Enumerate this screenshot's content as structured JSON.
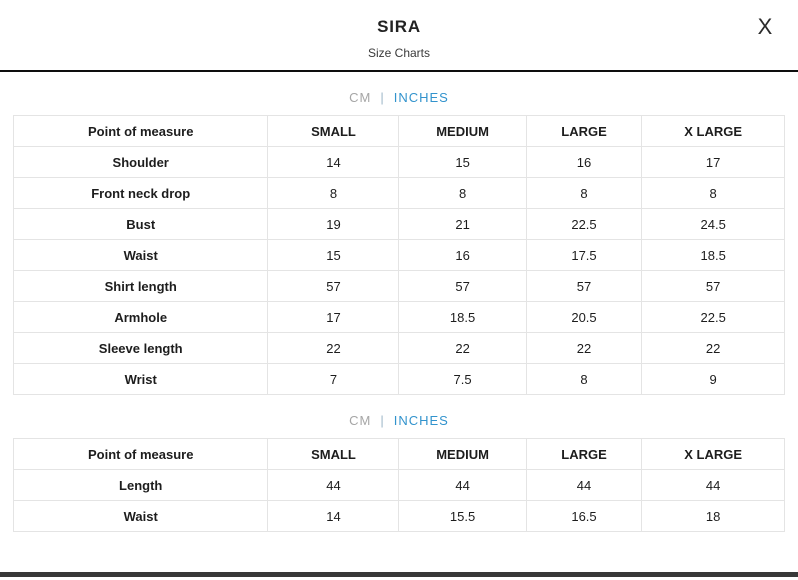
{
  "modal": {
    "title": "SIRA",
    "subtitle": "Size Charts",
    "close_label": "X"
  },
  "colors": {
    "accent_blue": "#3293cd",
    "muted_gray": "#a6a6a6",
    "table_border": "#e4e4e4",
    "divider_black": "#0e0e0e",
    "bottom_bar": "#383838"
  },
  "unit_toggle": {
    "cm_label": "CM",
    "separator": "|",
    "inches_label": "INCHES",
    "selected": "INCHES"
  },
  "tables": [
    {
      "columns": [
        "Point of measure",
        "SMALL",
        "MEDIUM",
        "LARGE",
        "X LARGE"
      ],
      "rows": [
        {
          "label": "Shoulder",
          "values": [
            "14",
            "15",
            "16",
            "17"
          ]
        },
        {
          "label": "Front neck drop",
          "values": [
            "8",
            "8",
            "8",
            "8"
          ]
        },
        {
          "label": "Bust",
          "values": [
            "19",
            "21",
            "22.5",
            "24.5"
          ]
        },
        {
          "label": "Waist",
          "values": [
            "15",
            "16",
            "17.5",
            "18.5"
          ]
        },
        {
          "label": "Shirt length",
          "values": [
            "57",
            "57",
            "57",
            "57"
          ]
        },
        {
          "label": "Armhole",
          "values": [
            "17",
            "18.5",
            "20.5",
            "22.5"
          ]
        },
        {
          "label": "Sleeve length",
          "values": [
            "22",
            "22",
            "22",
            "22"
          ]
        },
        {
          "label": "Wrist",
          "values": [
            "7",
            "7.5",
            "8",
            "9"
          ]
        }
      ]
    },
    {
      "columns": [
        "Point of measure",
        "SMALL",
        "MEDIUM",
        "LARGE",
        "X LARGE"
      ],
      "rows": [
        {
          "label": "Length",
          "values": [
            "44",
            "44",
            "44",
            "44"
          ]
        },
        {
          "label": "Waist",
          "values": [
            "14",
            "15.5",
            "16.5",
            "18"
          ]
        }
      ]
    }
  ]
}
